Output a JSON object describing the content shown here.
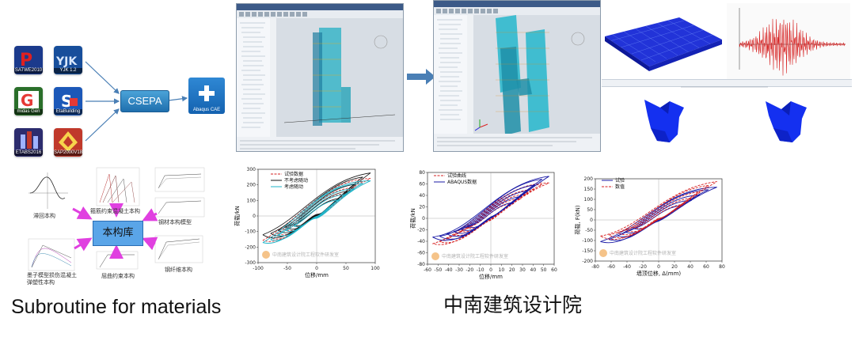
{
  "software_icons": [
    {
      "label": "SATWE2010",
      "bg": "#1b3a8c",
      "fg": "#e02020"
    },
    {
      "label": "YJK 1.2",
      "bg": "#174e9b",
      "fg": "#d9e8ff"
    },
    {
      "label": "midas Gen",
      "bg": "#2a6f2a",
      "fg": "#e53935"
    },
    {
      "label": "EtaBuilding",
      "bg": "#1c58b8",
      "fg": "#ffffff"
    },
    {
      "label": "ETABS2016",
      "bg": "#2c2c6e",
      "fg": "#9fb3ff"
    },
    {
      "label": "SAP2000V18",
      "bg": "#c0392b",
      "fg": "#f7d44c"
    }
  ],
  "converter": {
    "label": "CSEPA"
  },
  "abaqus": {
    "label": "Abaqus CAE"
  },
  "material_library": {
    "center_label": "本构库",
    "items": [
      {
        "label": "滞回本构"
      },
      {
        "label": "箍筋约束混凝土本构"
      },
      {
        "label": "钢材本构模型"
      },
      {
        "label": "墨子模型损伤混凝土 弹塑性本构"
      },
      {
        "label": "钢纤维本构"
      },
      {
        "label": "屈曲约束本构"
      }
    ]
  },
  "chart1": {
    "ylabel": "荷载/kN",
    "xlabel": "位移/mm",
    "legend": [
      "试验数据",
      "不考虑随动",
      "考虑随动"
    ],
    "xticks": [
      "-100",
      "-50",
      "0",
      "50",
      "100"
    ],
    "yticks": [
      "300",
      "200",
      "100",
      "0",
      "-100",
      "-200",
      "-300"
    ],
    "watermark": "中南建筑设计院工程软件研发室"
  },
  "chart2": {
    "ylabel": "荷载/kN",
    "xlabel": "位移/mm",
    "legend": [
      "试验曲线",
      "ABAQUS数据"
    ],
    "xticks": [
      "-60",
      "-50",
      "-40",
      "-30",
      "-20",
      "-10",
      "0",
      "10",
      "20",
      "30",
      "40",
      "50",
      "60"
    ],
    "yticks": [
      "80",
      "60",
      "40",
      "20",
      "0",
      "-20",
      "-40",
      "-60",
      "-80"
    ],
    "watermark": "中南建筑设计院工程软件研发室"
  },
  "chart3": {
    "ylabel": "荷载, F(kN)",
    "xlabel": "墙顶位移, Δ(mm)",
    "legend": [
      "试验",
      "数值"
    ],
    "xticks": [
      "-80",
      "-60",
      "-40",
      "-20",
      "0",
      "20",
      "40",
      "60",
      "80"
    ],
    "yticks": [
      "200",
      "150",
      "100",
      "50",
      "0",
      "-50",
      "-100",
      "-150",
      "-200"
    ],
    "watermark": "中南建筑设计院工程软件研发室"
  },
  "captions": {
    "left": "Subroutine for materials",
    "right": "中南建筑设计院"
  },
  "colors": {
    "arrow": "#4a7fb5",
    "magenta": "#e040e0",
    "red": "#d62020",
    "blue": "#1a1aa6",
    "cyan": "#1fb5c9"
  }
}
